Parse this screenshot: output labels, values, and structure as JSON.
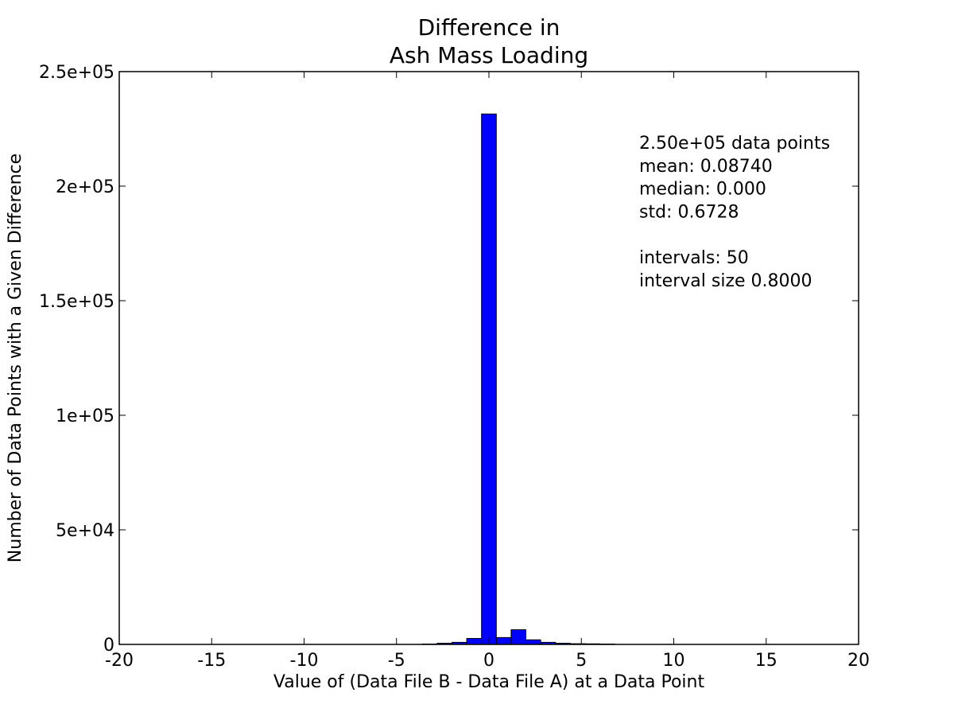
{
  "chart_data": {
    "type": "bar",
    "title": [
      "Difference in",
      "Ash Mass Loading"
    ],
    "xlabel": "Value of (Data File B - Data File A) at a Data Point",
    "ylabel": "Number of Data Points with a Given Difference",
    "xlim": [
      -20,
      20
    ],
    "ylim": [
      0,
      250000
    ],
    "xticks": [
      -20,
      -15,
      -10,
      -5,
      0,
      5,
      10,
      15,
      20
    ],
    "xtick_labels": [
      "-20",
      "-15",
      "-10",
      "-5",
      "0",
      "5",
      "10",
      "15",
      "20"
    ],
    "yticks": [
      0,
      50000,
      100000,
      150000,
      200000,
      250000
    ],
    "ytick_labels": [
      "0",
      "5e+04",
      "1e+05",
      "1.5e+05",
      "2e+05",
      "2.5e+05"
    ],
    "bar_color": "#0000ff",
    "bin_width": 0.8,
    "bins": [
      {
        "start": -3.6,
        "value": 150
      },
      {
        "start": -2.8,
        "value": 500
      },
      {
        "start": -2.0,
        "value": 900
      },
      {
        "start": -1.2,
        "value": 2600
      },
      {
        "start": -0.4,
        "value": 231500
      },
      {
        "start": 0.4,
        "value": 3000
      },
      {
        "start": 1.2,
        "value": 6400
      },
      {
        "start": 2.0,
        "value": 2000
      },
      {
        "start": 2.8,
        "value": 900
      },
      {
        "start": 3.6,
        "value": 500
      },
      {
        "start": 4.4,
        "value": 300
      },
      {
        "start": 5.2,
        "value": 250
      },
      {
        "start": 6.0,
        "value": 150
      }
    ],
    "annotations": [
      "2.50e+05 data points",
      "mean: 0.08740",
      "median: 0.000",
      "std: 0.6728",
      "",
      "intervals: 50",
      "interval size 0.8000"
    ]
  }
}
